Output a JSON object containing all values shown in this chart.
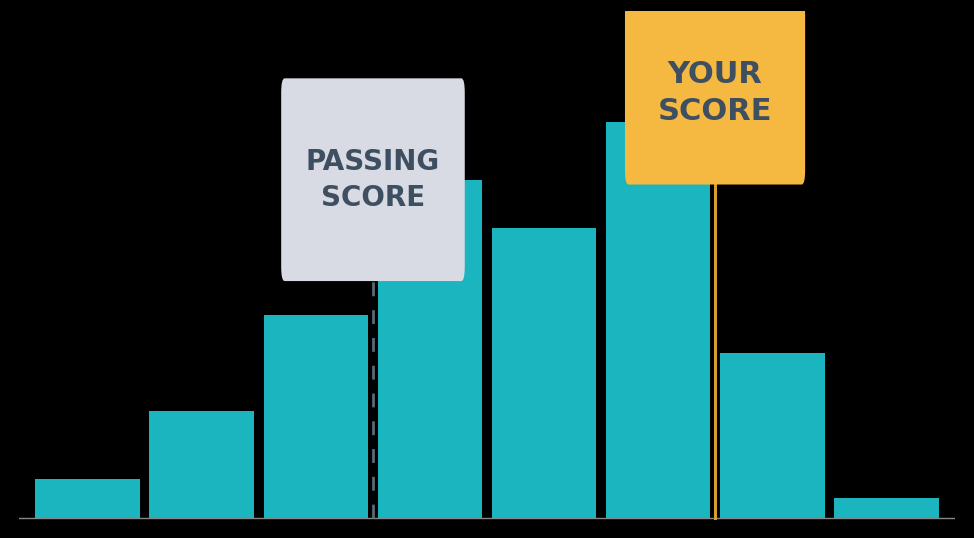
{
  "bar_values": [
    0.08,
    0.22,
    0.42,
    0.7,
    0.6,
    0.82,
    0.34,
    0.04
  ],
  "bar_color": "#1ab5be",
  "background_color": "#000000",
  "passing_score_bar_idx": 2.5,
  "your_score_bar_idx": 5.5,
  "passing_label": "PASSING\nSCORE",
  "your_label": "YOUR\nSCORE",
  "passing_box_color": "#d8dae4",
  "your_box_color": "#f5b942",
  "passing_line_color": "#5a6878",
  "your_line_color": "#d4a030",
  "label_text_color": "#3d4f60",
  "bar_width": 0.92,
  "baseline_color": "#888888",
  "font_size_passing": 20,
  "font_size_your": 22
}
